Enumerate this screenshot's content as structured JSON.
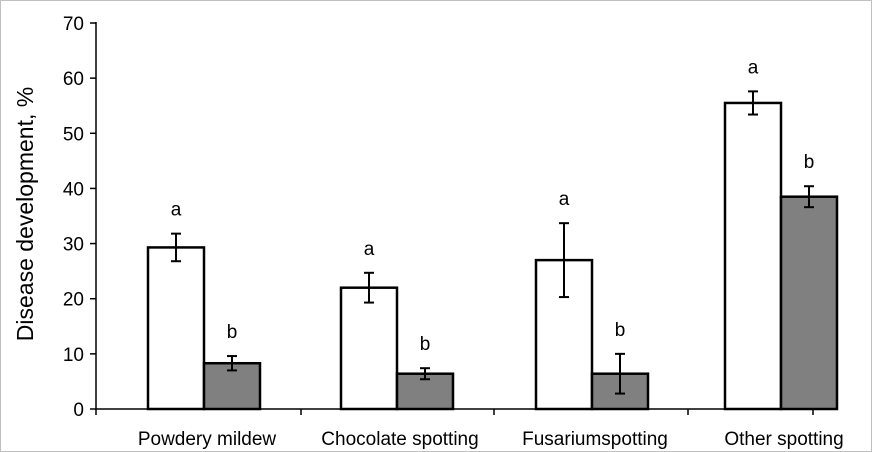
{
  "chart_data": {
    "type": "bar",
    "title": "",
    "xlabel": "",
    "ylabel": "Disease development, %",
    "ylim": [
      0,
      70
    ],
    "yticks": [
      0,
      10,
      20,
      30,
      40,
      50,
      60,
      70
    ],
    "grid": false,
    "legend": "none",
    "categories": [
      "Powdery mildew",
      "Chocolate spotting",
      "Fusariumspotting",
      "Other spotting"
    ],
    "series": [
      {
        "fill": "#ffffff",
        "values": [
          29.3,
          22.0,
          27.0,
          55.5
        ],
        "errors": [
          2.5,
          2.7,
          6.7,
          2.1
        ],
        "labels": [
          "a",
          "a",
          "a",
          "a"
        ]
      },
      {
        "fill": "#808080",
        "values": [
          8.3,
          6.4,
          6.4,
          38.5
        ],
        "errors": [
          1.3,
          1.0,
          3.6,
          1.9
        ],
        "labels": [
          "b",
          "b",
          "b",
          "b"
        ]
      }
    ]
  },
  "colors": {
    "axis": "#000000",
    "bar_stroke": "#000000",
    "frame": "#c0c0c0"
  }
}
